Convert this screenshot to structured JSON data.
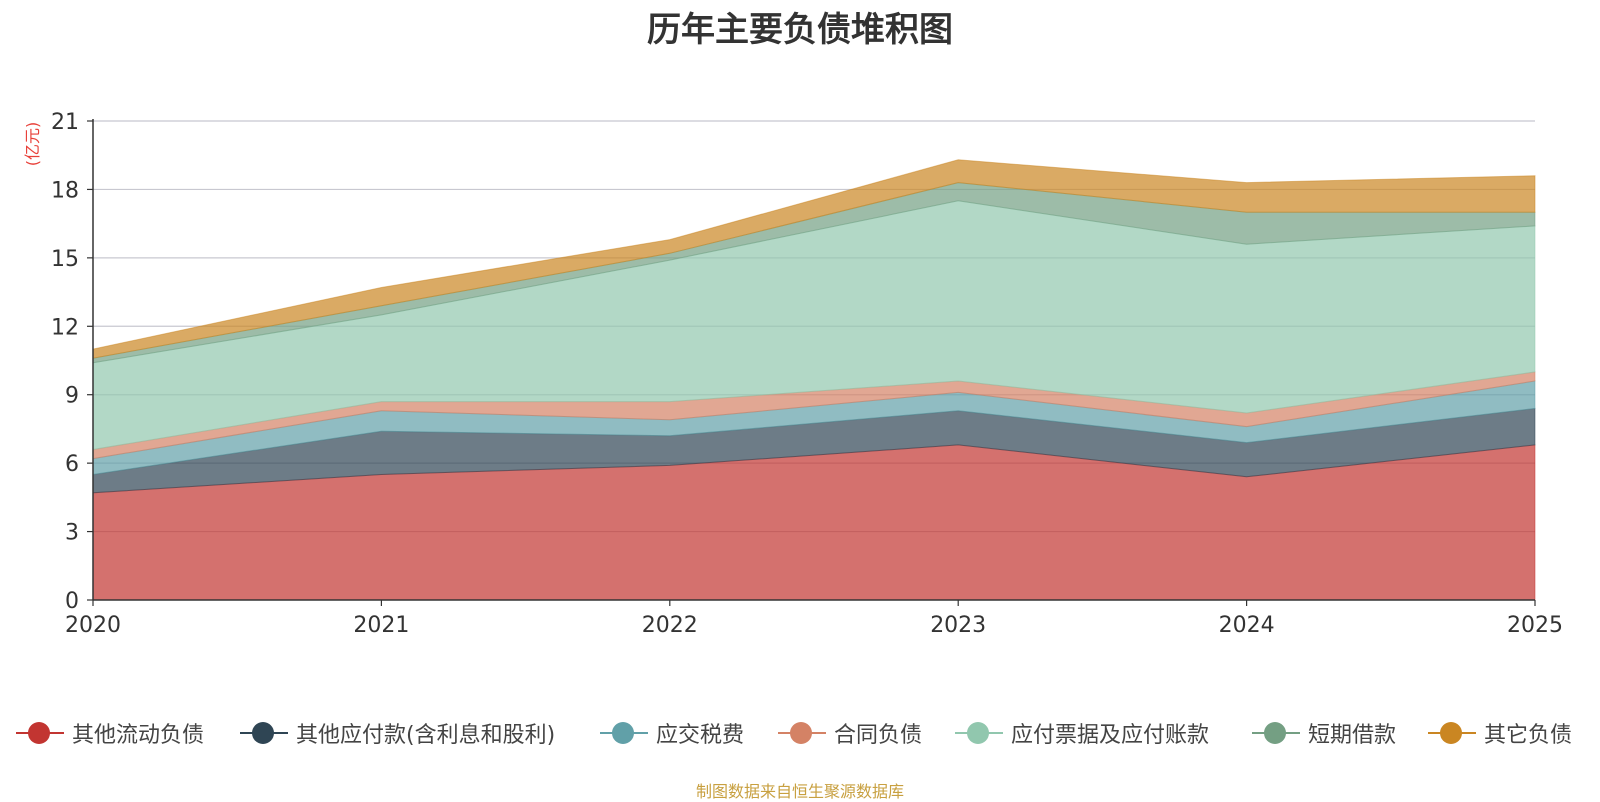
{
  "chart_data": {
    "type": "area",
    "stacked": true,
    "title": "历年主要负债堆积图",
    "ylabel": "(亿元)",
    "xlabel": "",
    "categories": [
      "2020",
      "2021",
      "2022",
      "2023",
      "2024",
      "2025"
    ],
    "ylim": [
      0,
      21
    ],
    "yticks": [
      0,
      3,
      6,
      9,
      12,
      15,
      18,
      21
    ],
    "grid": true,
    "legend_position": "bottom",
    "series": [
      {
        "name": "其他流动负债",
        "color": "#c23531",
        "values": [
          4.7,
          5.5,
          5.9,
          6.8,
          5.4,
          6.8
        ]
      },
      {
        "name": "其他应付款(含利息和股利)",
        "color": "#2f4554",
        "values": [
          0.8,
          1.9,
          1.3,
          1.5,
          1.5,
          1.6
        ]
      },
      {
        "name": "应交税费",
        "color": "#61a0a8",
        "values": [
          0.7,
          0.9,
          0.7,
          0.8,
          0.7,
          1.2
        ]
      },
      {
        "name": "合同负债",
        "color": "#d48265",
        "values": [
          0.4,
          0.4,
          0.8,
          0.5,
          0.6,
          0.4
        ]
      },
      {
        "name": "应付票据及应付账款",
        "color": "#91c7ae",
        "values": [
          3.8,
          3.8,
          6.2,
          7.9,
          7.4,
          6.4
        ]
      },
      {
        "name": "短期借款",
        "color": "#749f83",
        "values": [
          0.2,
          0.4,
          0.3,
          0.8,
          1.4,
          0.6
        ]
      },
      {
        "name": "其它负债",
        "color": "#ca8622",
        "values": [
          0.4,
          0.8,
          0.6,
          1.0,
          1.3,
          1.6
        ]
      }
    ]
  },
  "source_note": "制图数据来自恒生聚源数据库"
}
